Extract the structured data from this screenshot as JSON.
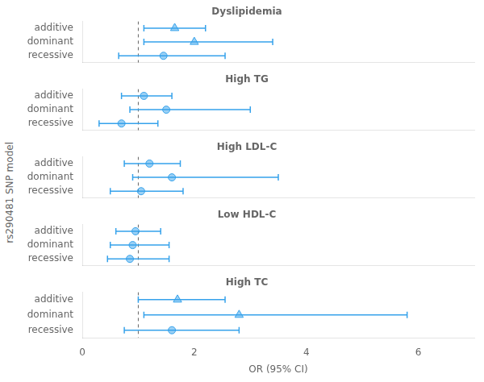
{
  "chart_data": {
    "type": "forest",
    "xlabel": "OR (95% CI)",
    "ylabel": "rs290481 SNP model",
    "xlim": [
      0,
      7
    ],
    "xticks": [
      0,
      2,
      4,
      6
    ],
    "reference_line": 1.0,
    "grid": false,
    "panels": [
      {
        "title": "Dyslipidemia",
        "categories": [
          "additive",
          "dominant",
          "recessive"
        ],
        "values": [
          1.65,
          2.0,
          1.45
        ],
        "ci_lo": [
          1.1,
          1.1,
          0.65
        ],
        "ci_hi": [
          2.2,
          3.4,
          2.55
        ],
        "markers": [
          "triangle",
          "triangle",
          "circle"
        ],
        "tick_labels": "y"
      },
      {
        "title": "High TG",
        "categories": [
          "additive",
          "dominant",
          "recessive"
        ],
        "values": [
          1.1,
          1.5,
          0.7
        ],
        "ci_lo": [
          0.7,
          0.85,
          0.3
        ],
        "ci_hi": [
          1.6,
          3.0,
          1.35
        ],
        "markers": [
          "circle",
          "circle",
          "circle"
        ],
        "tick_labels": "y"
      },
      {
        "title": "High LDL-C",
        "categories": [
          "additive",
          "dominant",
          "recessive"
        ],
        "values": [
          1.2,
          1.6,
          1.05
        ],
        "ci_lo": [
          0.75,
          0.9,
          0.5
        ],
        "ci_hi": [
          1.75,
          3.5,
          1.8
        ],
        "markers": [
          "circle",
          "circle",
          "circle"
        ],
        "tick_labels": "y"
      },
      {
        "title": "Low HDL-C",
        "categories": [
          "additive",
          "dominant",
          "recessive"
        ],
        "values": [
          0.95,
          0.9,
          0.85
        ],
        "ci_lo": [
          0.6,
          0.5,
          0.45
        ],
        "ci_hi": [
          1.4,
          1.55,
          1.55
        ],
        "markers": [
          "circle",
          "circle",
          "circle"
        ],
        "tick_labels": "y"
      },
      {
        "title": "High TC",
        "categories": [
          "additive",
          "dominant",
          "recessive"
        ],
        "values": [
          1.7,
          2.8,
          1.6
        ],
        "ci_lo": [
          1.0,
          1.1,
          0.75
        ],
        "ci_hi": [
          2.55,
          5.8,
          2.8
        ],
        "markers": [
          "triangle",
          "triangle",
          "circle"
        ]
      }
    ]
  }
}
